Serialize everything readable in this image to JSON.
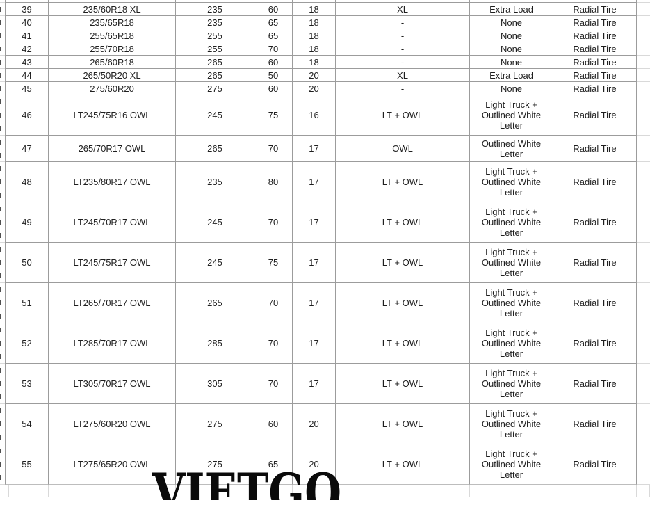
{
  "watermark": {
    "text": "VIETGO"
  },
  "colors": {
    "table_border": "#9c9c9c",
    "faint_gridline": "#d9d9d9",
    "cell_text": "#1f1f1f",
    "watermark_text": "#0a0a0a",
    "background": "#ffffff"
  },
  "table": {
    "fields": [
      "num",
      "size",
      "width",
      "aspect",
      "rim",
      "code",
      "desc",
      "type"
    ],
    "rows": [
      {
        "num": "39",
        "size": "235/60R18 XL",
        "width": "235",
        "aspect": "60",
        "rim": "18",
        "code": "XL",
        "desc": "Extra Load",
        "type": "Radial Tire"
      },
      {
        "num": "40",
        "size": "235/65R18",
        "width": "235",
        "aspect": "65",
        "rim": "18",
        "code": "-",
        "desc": "None",
        "type": "Radial Tire"
      },
      {
        "num": "41",
        "size": "255/65R18",
        "width": "255",
        "aspect": "65",
        "rim": "18",
        "code": "-",
        "desc": "None",
        "type": "Radial Tire"
      },
      {
        "num": "42",
        "size": "255/70R18",
        "width": "255",
        "aspect": "70",
        "rim": "18",
        "code": "-",
        "desc": "None",
        "type": "Radial Tire"
      },
      {
        "num": "43",
        "size": "265/60R18",
        "width": "265",
        "aspect": "60",
        "rim": "18",
        "code": "-",
        "desc": "None",
        "type": "Radial Tire"
      },
      {
        "num": "44",
        "size": "265/50R20 XL",
        "width": "265",
        "aspect": "50",
        "rim": "20",
        "code": "XL",
        "desc": "Extra Load",
        "type": "Radial Tire"
      },
      {
        "num": "45",
        "size": "275/60R20",
        "width": "275",
        "aspect": "60",
        "rim": "20",
        "code": "-",
        "desc": "None",
        "type": "Radial Tire"
      },
      {
        "num": "46",
        "size": "LT245/75R16 OWL",
        "width": "245",
        "aspect": "75",
        "rim": "16",
        "code": "LT + OWL",
        "desc": "Light Truck + Outlined White Letter",
        "type": "Radial Tire"
      },
      {
        "num": "47",
        "size": "265/70R17 OWL",
        "width": "265",
        "aspect": "70",
        "rim": "17",
        "code": "OWL",
        "desc": "Outlined White Letter",
        "type": "Radial Tire"
      },
      {
        "num": "48",
        "size": "LT235/80R17 OWL",
        "width": "235",
        "aspect": "80",
        "rim": "17",
        "code": "LT + OWL",
        "desc": "Light Truck + Outlined White Letter",
        "type": "Radial Tire"
      },
      {
        "num": "49",
        "size": "LT245/70R17 OWL",
        "width": "245",
        "aspect": "70",
        "rim": "17",
        "code": "LT + OWL",
        "desc": "Light Truck + Outlined White Letter",
        "type": "Radial Tire"
      },
      {
        "num": "50",
        "size": "LT245/75R17 OWL",
        "width": "245",
        "aspect": "75",
        "rim": "17",
        "code": "LT + OWL",
        "desc": "Light Truck + Outlined White Letter",
        "type": "Radial Tire"
      },
      {
        "num": "51",
        "size": "LT265/70R17 OWL",
        "width": "265",
        "aspect": "70",
        "rim": "17",
        "code": "LT + OWL",
        "desc": "Light Truck + Outlined White Letter",
        "type": "Radial Tire"
      },
      {
        "num": "52",
        "size": "LT285/70R17 OWL",
        "width": "285",
        "aspect": "70",
        "rim": "17",
        "code": "LT + OWL",
        "desc": "Light Truck + Outlined White Letter",
        "type": "Radial Tire"
      },
      {
        "num": "53",
        "size": "LT305/70R17 OWL",
        "width": "305",
        "aspect": "70",
        "rim": "17",
        "code": "LT + OWL",
        "desc": "Light Truck + Outlined White Letter",
        "type": "Radial Tire"
      },
      {
        "num": "54",
        "size": "LT275/60R20 OWL",
        "width": "275",
        "aspect": "60",
        "rim": "20",
        "code": "LT + OWL",
        "desc": "Light Truck + Outlined White Letter",
        "type": "Radial Tire"
      },
      {
        "num": "55",
        "size": "LT275/65R20 OWL",
        "width": "275",
        "aspect": "65",
        "rim": "20",
        "code": "LT + OWL",
        "desc": "Light Truck + Outlined White Letter",
        "type": "Radial Tire"
      }
    ]
  }
}
